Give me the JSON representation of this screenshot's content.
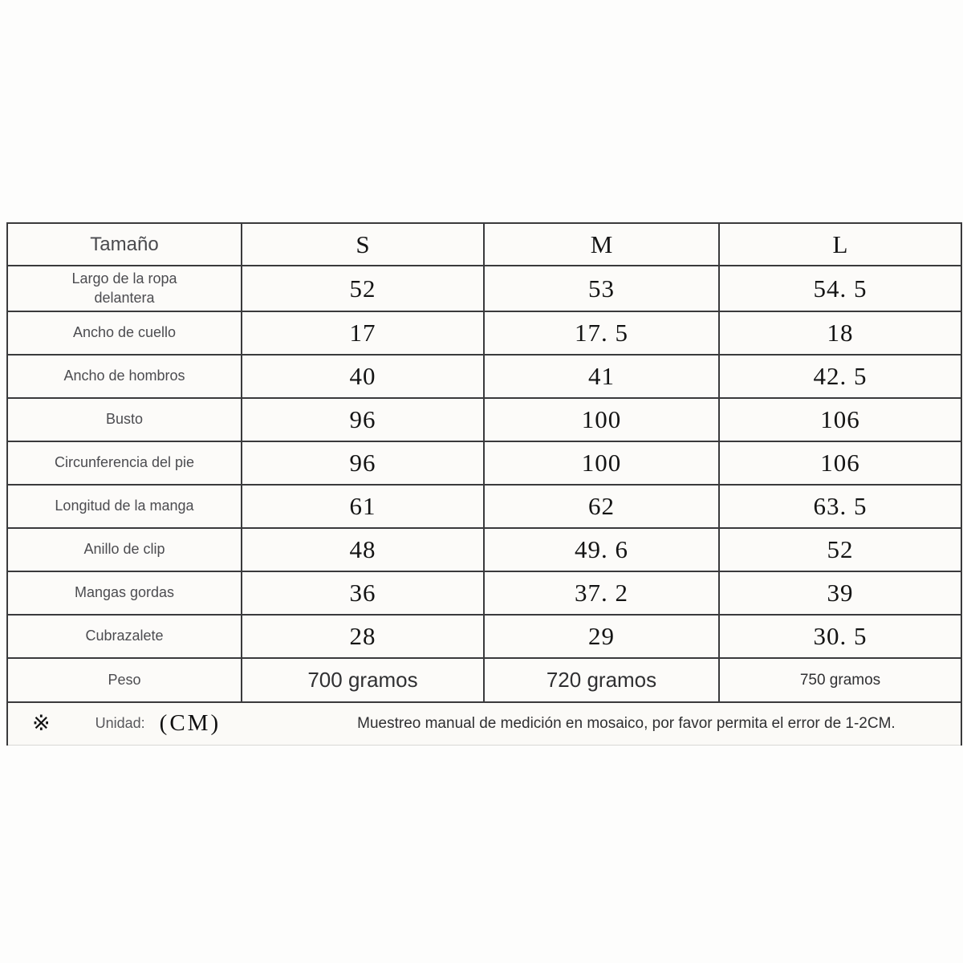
{
  "table": {
    "header": {
      "label": "Tamaño",
      "sizes": [
        "S",
        "M",
        "L"
      ]
    },
    "rows": [
      {
        "label": "Largo de la ropa delantera",
        "values": [
          "52",
          "53",
          "54. 5"
        ]
      },
      {
        "label": "Ancho de cuello",
        "values": [
          "17",
          "17. 5",
          "18"
        ]
      },
      {
        "label": "Ancho de hombros",
        "values": [
          "40",
          "41",
          "42. 5"
        ]
      },
      {
        "label": "Busto",
        "values": [
          "96",
          "100",
          "106"
        ]
      },
      {
        "label": "Circunferencia del pie",
        "values": [
          "96",
          "100",
          "106"
        ]
      },
      {
        "label": "Longitud de la manga",
        "values": [
          "61",
          "62",
          "63. 5"
        ]
      },
      {
        "label": "Anillo de clip",
        "values": [
          "48",
          "49. 6",
          "52"
        ]
      },
      {
        "label": "Mangas gordas",
        "values": [
          "36",
          "37. 2",
          "39"
        ]
      },
      {
        "label": "Cubrazalete",
        "values": [
          "28",
          "29",
          "30. 5"
        ]
      },
      {
        "label": "Peso",
        "values": [
          "700 gramos",
          "720 gramos",
          "750 gramos"
        ]
      }
    ],
    "footer": {
      "symbol": "※",
      "unit_label": "Unidad:",
      "unit_value": "(CM)",
      "note": "Muestreo manual de medición en mosaico, por favor permita el error de 1-2CM."
    }
  },
  "colors": {
    "border": "#3a3a3c",
    "label_text": "#4c4c50",
    "value_text": "#141414",
    "background": "#fdfdfc"
  }
}
